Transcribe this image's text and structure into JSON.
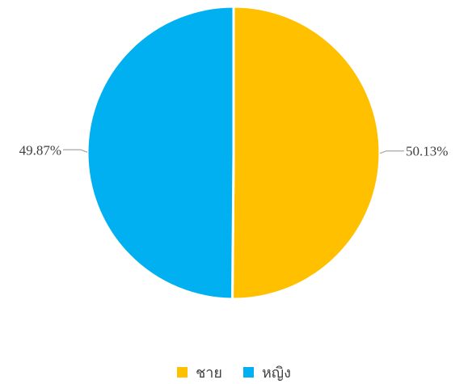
{
  "chart_data": {
    "type": "pie",
    "slices": [
      {
        "label": "ชาย",
        "value": 50.13,
        "display": "50.13%",
        "color": "#FFC000"
      },
      {
        "label": "หญิง",
        "value": 49.87,
        "display": "49.87%",
        "color": "#00B0F0"
      }
    ],
    "start_angle": "12 o'clock",
    "direction": "clockwise",
    "legend_position": "bottom"
  }
}
